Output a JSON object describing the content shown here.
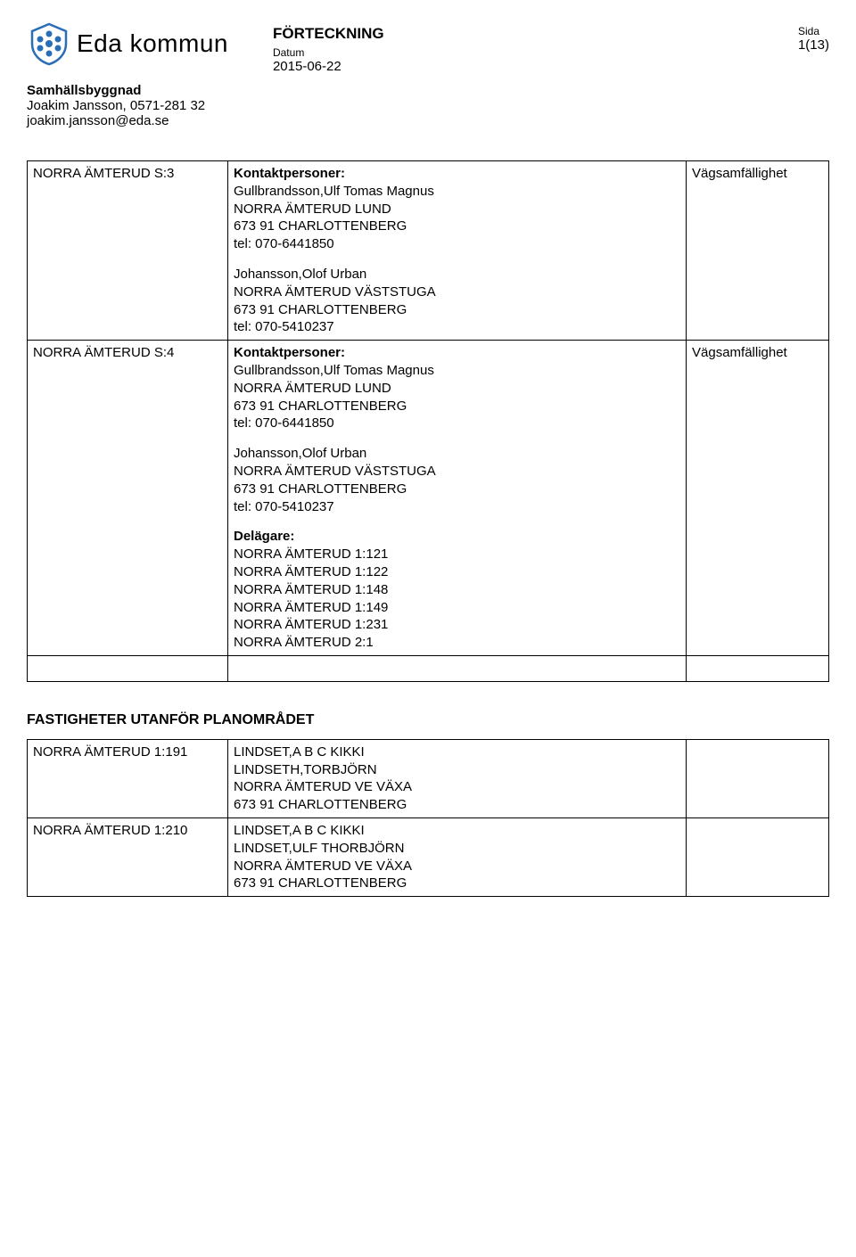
{
  "header": {
    "brand": "Eda kommun",
    "title": "FÖRTECKNING",
    "date_label": "Datum",
    "date": "2015-06-22",
    "page_label": "Sida",
    "page_num": "1(13)"
  },
  "dept": {
    "name": "Samhällsbyggnad",
    "contact_line1": "Joakim Jansson, 0571-281 32",
    "contact_line2": "joakim.jansson@eda.se"
  },
  "rows": [
    {
      "id": "NORRA ÄMTERUD S:3",
      "blocks": [
        {
          "bold_label": "Kontaktpersoner:",
          "lines": [
            "Gullbrandsson,Ulf Tomas Magnus",
            "NORRA ÄMTERUD LUND",
            "673 91 CHARLOTTENBERG",
            " tel: 070-6441850"
          ]
        },
        {
          "lines": [
            "Johansson,Olof Urban",
            "NORRA ÄMTERUD VÄSTSTUGA",
            "673 91  CHARLOTTENBERG",
            "tel: 070-5410237"
          ]
        }
      ],
      "note": "Vägsamfällighet"
    },
    {
      "id": "NORRA ÄMTERUD S:4",
      "blocks": [
        {
          "bold_label": "Kontaktpersoner:",
          "lines": [
            "Gullbrandsson,Ulf Tomas Magnus",
            "NORRA ÄMTERUD LUND",
            "673 91 CHARLOTTENBERG",
            " tel: 070-6441850"
          ]
        },
        {
          "lines": [
            "Johansson,Olof Urban",
            "NORRA ÄMTERUD VÄSTSTUGA",
            "673 91  CHARLOTTENBERG",
            "tel: 070-5410237"
          ]
        },
        {
          "bold_label": "Delägare:",
          "lines": [
            "NORRA ÄMTERUD 1:121",
            "NORRA ÄMTERUD 1:122",
            "NORRA ÄMTERUD 1:148",
            "NORRA ÄMTERUD 1:149",
            "NORRA ÄMTERUD 1:231",
            "NORRA ÄMTERUD 2:1"
          ]
        }
      ],
      "note": "Vägsamfällighet"
    },
    {
      "empty": true
    }
  ],
  "section2_title": "FASTIGHETER UTANFÖR PLANOMRÅDET",
  "rows2": [
    {
      "id": "NORRA ÄMTERUD 1:191",
      "blocks": [
        {
          "lines": [
            "LINDSET,A B C KIKKI",
            "LINDSETH,TORBJÖRN",
            "NORRA ÄMTERUD VE VÄXA",
            "673 91 CHARLOTTENBERG"
          ]
        }
      ],
      "note": ""
    },
    {
      "id": "NORRA ÄMTERUD 1:210",
      "blocks": [
        {
          "lines": [
            "LINDSET,A B C KIKKI",
            "LINDSET,ULF THORBJÖRN",
            "NORRA ÄMTERUD VE VÄXA",
            "673 91 CHARLOTTENBERG"
          ]
        }
      ],
      "note": ""
    }
  ],
  "logo": {
    "stroke": "#2a6fb5",
    "fill": "#2a6fb5"
  }
}
